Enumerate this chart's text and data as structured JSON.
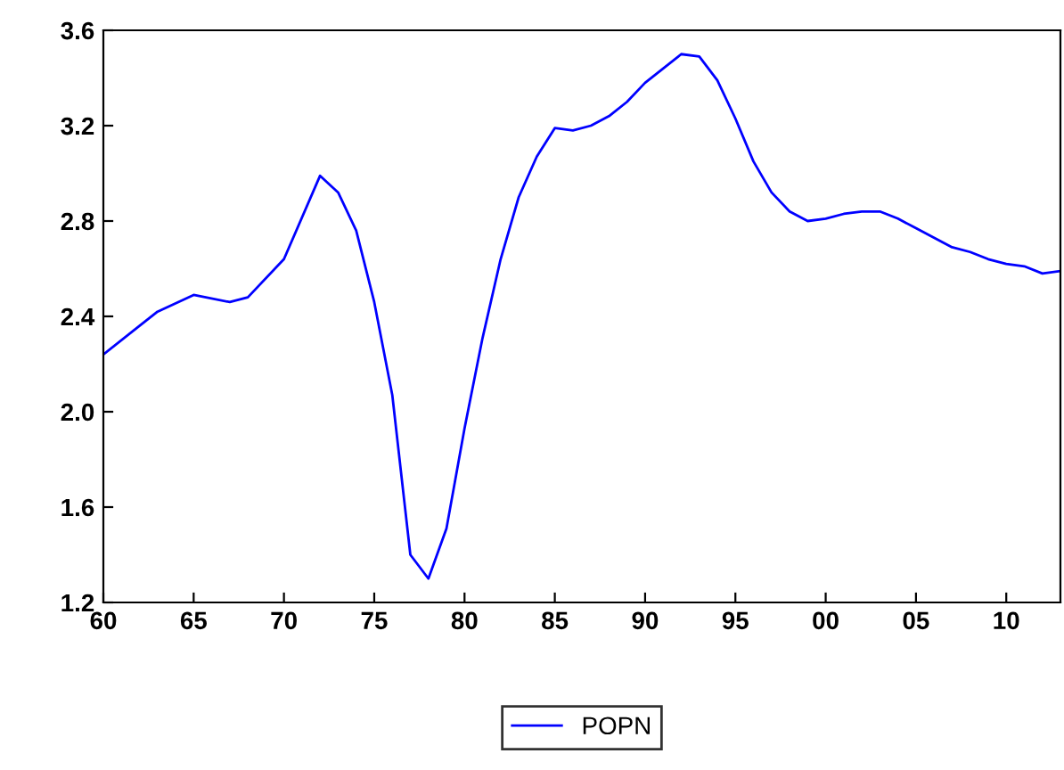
{
  "chart_data": {
    "type": "line",
    "x": [
      1960,
      1962,
      1963,
      1965,
      1967,
      1968,
      1970,
      1972,
      1973,
      1974,
      1975,
      1976,
      1977,
      1978,
      1979,
      1980,
      1981,
      1982,
      1983,
      1984,
      1985,
      1986,
      1987,
      1988,
      1989,
      1990,
      1991,
      1992,
      1993,
      1994,
      1995,
      1996,
      1997,
      1998,
      1999,
      2000,
      2001,
      2002,
      2003,
      2004,
      2005,
      2006,
      2007,
      2008,
      2009,
      2010,
      2011,
      2012,
      2013
    ],
    "series": [
      {
        "name": "POPN",
        "color": "#0000ff",
        "values": [
          2.24,
          2.36,
          2.42,
          2.49,
          2.46,
          2.48,
          2.64,
          2.99,
          2.92,
          2.76,
          2.46,
          2.07,
          1.4,
          1.3,
          1.51,
          1.93,
          2.31,
          2.64,
          2.9,
          3.07,
          3.19,
          3.18,
          3.2,
          3.24,
          3.3,
          3.38,
          3.44,
          3.5,
          3.49,
          3.39,
          3.23,
          3.05,
          2.92,
          2.84,
          2.8,
          2.81,
          2.83,
          2.84,
          2.84,
          2.81,
          2.77,
          2.73,
          2.69,
          2.67,
          2.64,
          2.62,
          2.61,
          2.58,
          2.59
        ]
      }
    ],
    "xlim": [
      1960,
      2013
    ],
    "xticks": [
      {
        "value": 1960,
        "label": "60"
      },
      {
        "value": 1965,
        "label": "65"
      },
      {
        "value": 1970,
        "label": "70"
      },
      {
        "value": 1975,
        "label": "75"
      },
      {
        "value": 1980,
        "label": "80"
      },
      {
        "value": 1985,
        "label": "85"
      },
      {
        "value": 1990,
        "label": "90"
      },
      {
        "value": 1995,
        "label": "95"
      },
      {
        "value": 2000,
        "label": "00"
      },
      {
        "value": 2005,
        "label": "05"
      },
      {
        "value": 2010,
        "label": "10"
      }
    ],
    "ylim": [
      1.2,
      3.6
    ],
    "yticks": [
      {
        "value": 1.2,
        "label": "1.2"
      },
      {
        "value": 1.6,
        "label": "1.6"
      },
      {
        "value": 2.0,
        "label": "2.0"
      },
      {
        "value": 2.4,
        "label": "2.4"
      },
      {
        "value": 2.8,
        "label": "2.8"
      },
      {
        "value": 3.2,
        "label": "3.2"
      },
      {
        "value": 3.6,
        "label": "3.6"
      }
    ],
    "legend": "bottom",
    "grid": false
  }
}
